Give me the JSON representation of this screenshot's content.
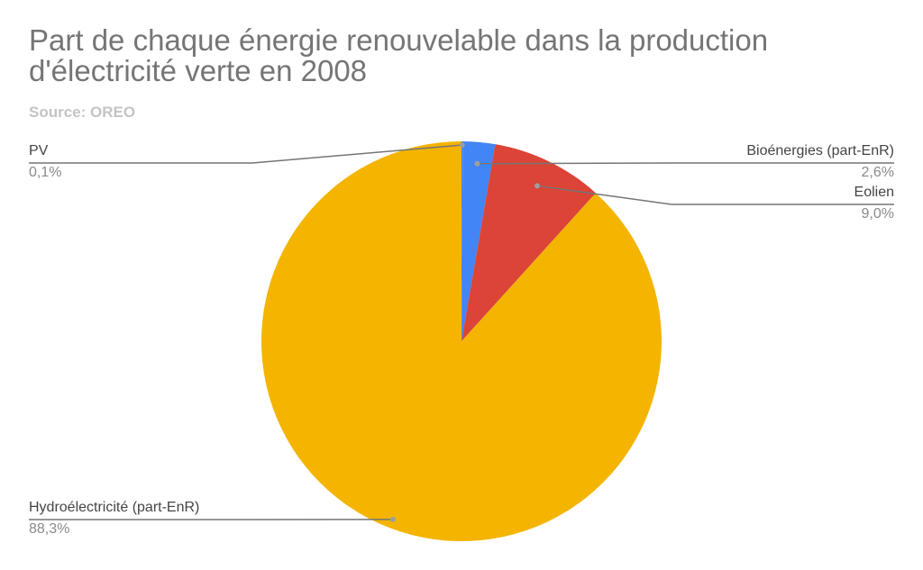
{
  "chart_data": {
    "type": "pie",
    "title": "Part de chaque énergie renouvelable dans la production d'électricité verte en 2008",
    "subtitle": "Source: OREO",
    "slices": [
      {
        "name": "PV",
        "value": 0.1,
        "value_label": "0,1%",
        "color": "#4285f4"
      },
      {
        "name": "Bioénergies (part-EnR)",
        "value": 2.6,
        "value_label": "2,6%",
        "color": "#4285f4"
      },
      {
        "name": "Eolien",
        "value": 9.0,
        "value_label": "9,0%",
        "color": "#db4437"
      },
      {
        "name": "Hydroélectricité (part-EnR)",
        "value": 88.3,
        "value_label": "88,3%",
        "color": "#f4b400"
      }
    ],
    "legend": "labels with leader lines"
  }
}
